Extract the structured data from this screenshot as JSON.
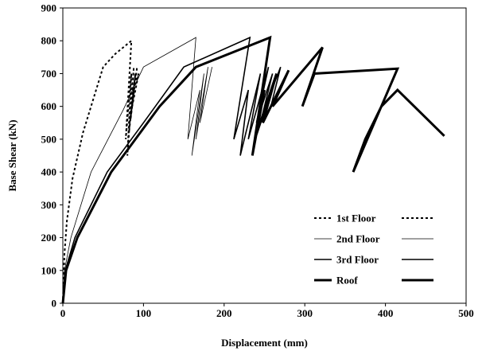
{
  "chart_data": {
    "type": "line",
    "title": "",
    "xlabel": "Displacement (mm)",
    "ylabel": "Base Shear (kN)",
    "xlim": [
      0,
      500
    ],
    "ylim": [
      0,
      900
    ],
    "xticks": [
      0,
      100,
      200,
      300,
      400,
      500
    ],
    "yticks": [
      0,
      100,
      200,
      300,
      400,
      500,
      600,
      700,
      800,
      900
    ],
    "grid": false,
    "legend_position": "lower-right",
    "series": [
      {
        "name": "1st Floor",
        "style": "dotted",
        "color": "#000000",
        "x": [
          0,
          2,
          5,
          12,
          25,
          50,
          65,
          85,
          78,
          85,
          80,
          88,
          82,
          90,
          84,
          92,
          86,
          94,
          88
        ],
        "y": [
          0,
          150,
          250,
          380,
          520,
          720,
          760,
          800,
          500,
          700,
          450,
          720,
          520,
          700,
          560,
          720,
          600,
          700,
          650
        ],
        "points_note": ""
      },
      {
        "name": "2nd Floor",
        "style": "thin",
        "color": "#000000",
        "x": [
          0,
          2,
          10,
          35,
          75,
          100,
          165,
          155,
          170,
          160,
          175,
          165,
          180,
          170,
          185
        ],
        "y": [
          0,
          100,
          200,
          400,
          590,
          720,
          810,
          500,
          650,
          450,
          700,
          500,
          720,
          550,
          720
        ],
        "points_note": ""
      },
      {
        "name": "3rd Floor",
        "style": "medium",
        "color": "#000000",
        "x": [
          0,
          3,
          15,
          55,
          100,
          150,
          232,
          212,
          230,
          220,
          245,
          230,
          255,
          240,
          260,
          248,
          270,
          258,
          280
        ],
        "y": [
          0,
          100,
          200,
          400,
          550,
          720,
          810,
          500,
          650,
          450,
          700,
          500,
          720,
          550,
          700,
          580,
          720,
          600,
          710
        ],
        "points_note": ""
      },
      {
        "name": "Roof",
        "style": "thick",
        "color": "#000000",
        "x": [
          0,
          4,
          18,
          60,
          120,
          165,
          257,
          235,
          250,
          238,
          265,
          248,
          280,
          260,
          322,
          297,
          312,
          415,
          360,
          375,
          395,
          415,
          473
        ],
        "y": [
          0,
          100,
          200,
          400,
          600,
          720,
          810,
          450,
          650,
          500,
          700,
          550,
          710,
          600,
          780,
          600,
          700,
          715,
          400,
          500,
          600,
          650,
          510
        ],
        "points_note": ""
      }
    ]
  },
  "legend": {
    "items": [
      "1st Floor",
      "2nd Floor",
      "3rd Floor",
      "Roof"
    ]
  }
}
